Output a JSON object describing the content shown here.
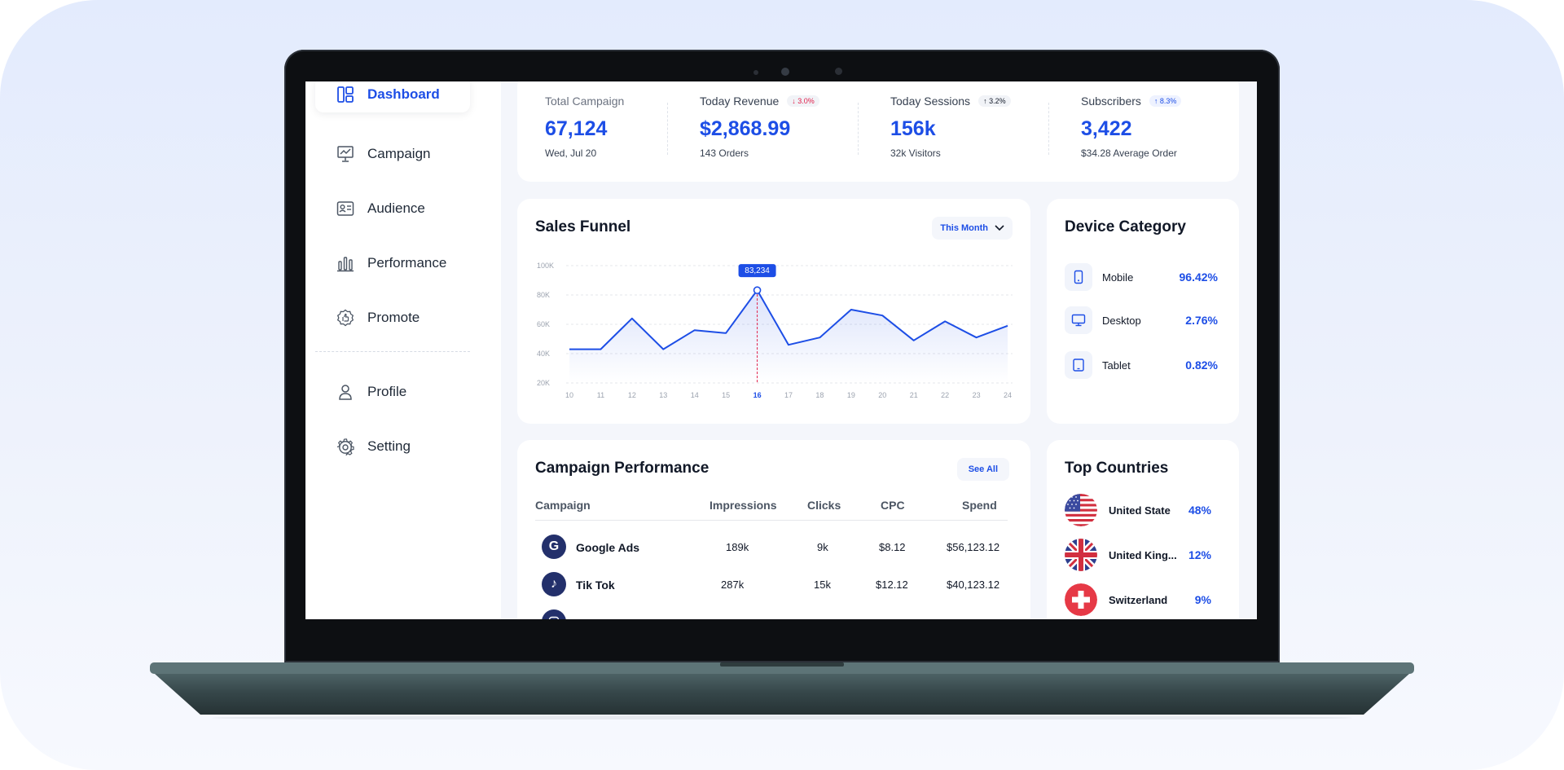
{
  "sidebar": {
    "items": [
      {
        "label": "Dashboard",
        "icon": "dashboard-icon",
        "active": true
      },
      {
        "label": "Campaign",
        "icon": "presentation-chart-icon"
      },
      {
        "label": "Audience",
        "icon": "id-card-icon"
      },
      {
        "label": "Performance",
        "icon": "bar-chart-icon"
      },
      {
        "label": "Promote",
        "icon": "badge-thumb-icon"
      },
      {
        "label": "Profile",
        "icon": "user-icon"
      },
      {
        "label": "Setting",
        "icon": "gear-icon"
      }
    ]
  },
  "stats": {
    "total_campaign": {
      "label": "Total Campaign",
      "value": "67,124",
      "sub": "Wed, Jul 20"
    },
    "today_revenue": {
      "label": "Today Revenue",
      "badge": "↓ 3.0%",
      "value": "$2,868.99",
      "sub": "143 Orders"
    },
    "today_sessions": {
      "label": "Today Sessions",
      "badge": "↑ 3.2%",
      "value": "156k",
      "sub": "32k Visitors"
    },
    "subscribers": {
      "label": "Subscribers",
      "badge": "↑ 8.3%",
      "value": "3,422",
      "sub": "$34.28 Average Order"
    }
  },
  "sales_funnel": {
    "title": "Sales Funnel",
    "period_select": "This Month",
    "chart_data": {
      "type": "line",
      "x": [
        "10",
        "11",
        "12",
        "13",
        "14",
        "15",
        "16",
        "17",
        "18",
        "19",
        "20",
        "21",
        "22",
        "23",
        "24"
      ],
      "series": [
        {
          "values": [
            43000,
            43000,
            64000,
            43000,
            56000,
            54000,
            83234,
            46000,
            51000,
            70000,
            66000,
            49000,
            62000,
            51000,
            59000
          ]
        }
      ],
      "yticks": [
        "100K",
        "80K",
        "60K",
        "40K",
        "20K"
      ],
      "ylim": [
        20000,
        100000
      ],
      "highlight": {
        "x": "16",
        "label": "83,234"
      },
      "grid": true
    }
  },
  "device_category": {
    "title": "Device Category",
    "items": [
      {
        "name": "Mobile",
        "value": "96.42%",
        "icon": "mobile-icon"
      },
      {
        "name": "Desktop",
        "value": "2.76%",
        "icon": "desktop-icon"
      },
      {
        "name": "Tablet",
        "value": "0.82%",
        "icon": "tablet-icon"
      }
    ]
  },
  "campaign_performance": {
    "title": "Campaign Performance",
    "see_all": "See All",
    "columns": [
      "Campaign",
      "Impressions",
      "Clicks",
      "CPC",
      "Spend"
    ],
    "rows": [
      {
        "name": "Google Ads",
        "logo": "G",
        "impressions": "189k",
        "clicks": "9k",
        "cpc": "$8.12",
        "spend": "$56,123.12"
      },
      {
        "name": "Tik Tok",
        "logo": "♪",
        "impressions": "287k",
        "clicks": "15k",
        "cpc": "$12.12",
        "spend": "$40,123.12"
      }
    ]
  },
  "top_countries": {
    "title": "Top Countries",
    "items": [
      {
        "name": "United State",
        "value": "48%",
        "flag": "us-flag-icon"
      },
      {
        "name": "United King...",
        "value": "12%",
        "flag": "uk-flag-icon"
      },
      {
        "name": "Switzerland",
        "value": "9%",
        "flag": "swiss-flag-icon"
      }
    ]
  },
  "colors": {
    "accent": "#1d4ee6",
    "negative": "#e11d48",
    "navy": "#23306b"
  }
}
